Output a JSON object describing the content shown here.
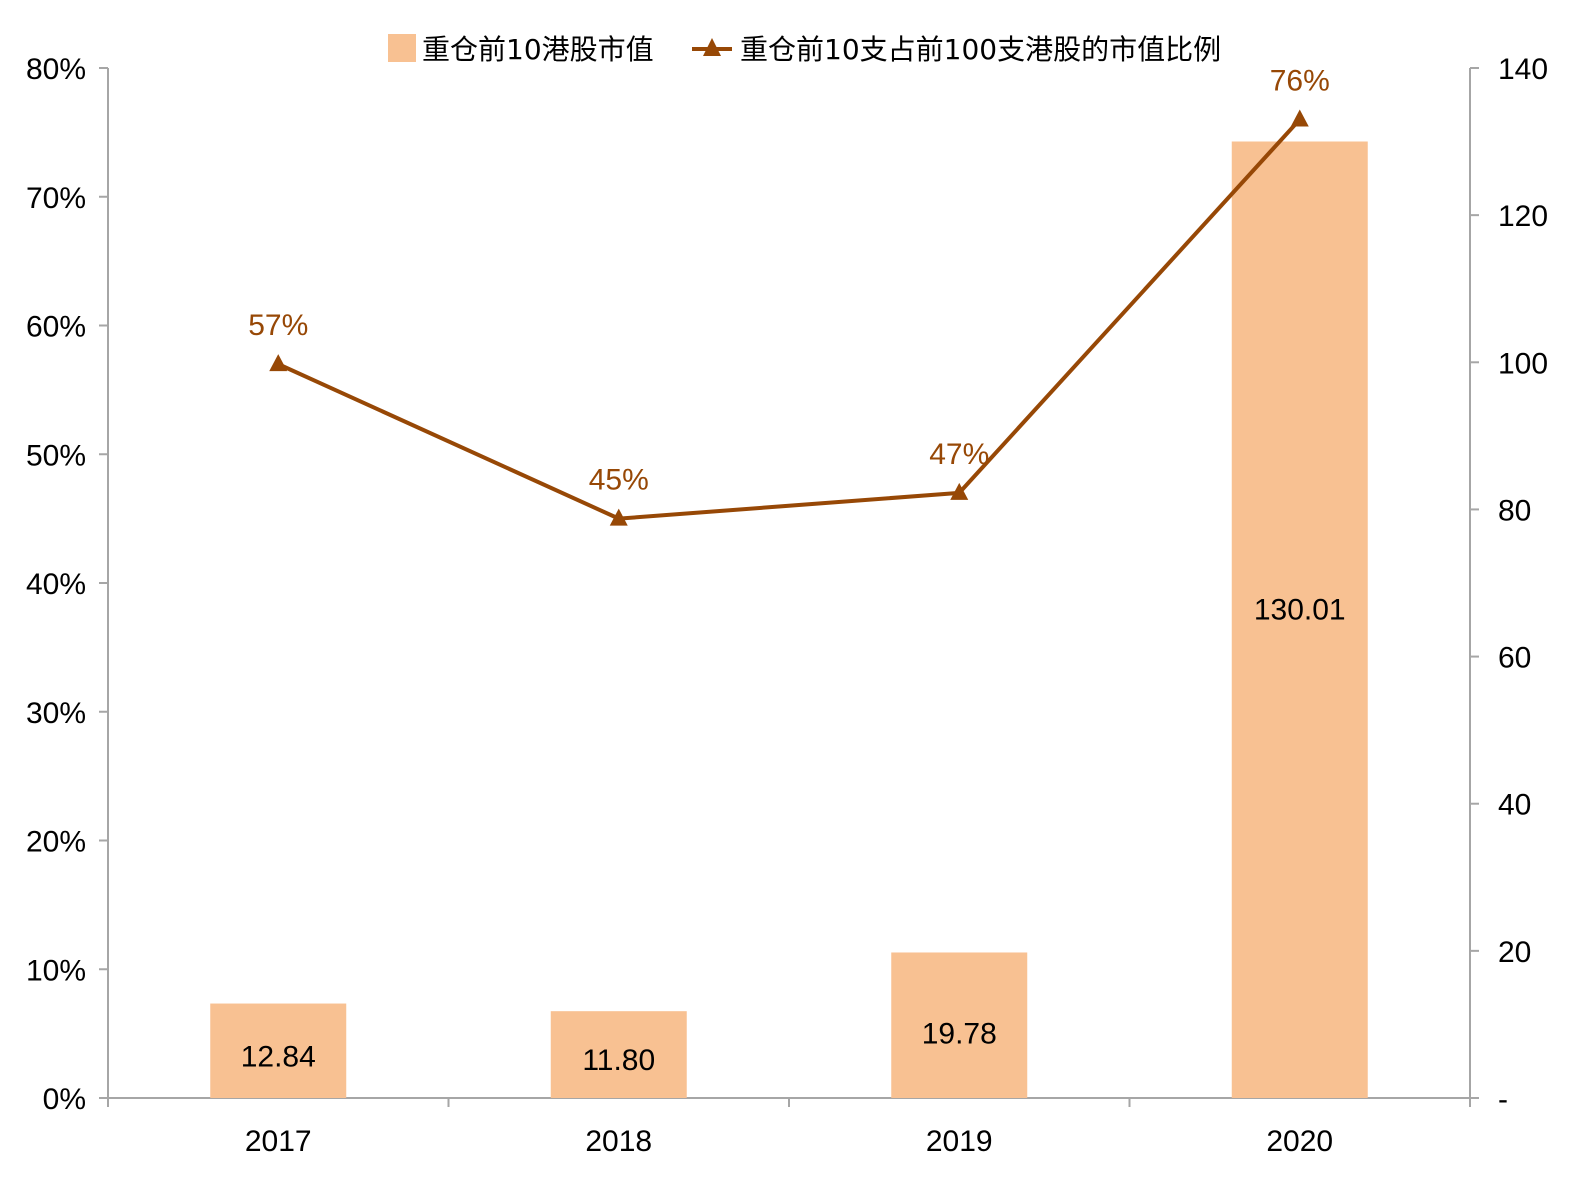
{
  "chart_data": {
    "type": "bar",
    "categories": [
      "2017",
      "2018",
      "2019",
      "2020"
    ],
    "series": [
      {
        "name": "重仓前10港股市值",
        "type": "bar",
        "axis": "right",
        "values": [
          12.84,
          11.8,
          19.78,
          130.01
        ],
        "labels": [
          "12.84",
          "11.80",
          "19.78",
          "130.01"
        ],
        "color": "#F8C192"
      },
      {
        "name": "重仓前10支占前100支港股的市值比例",
        "type": "line",
        "marker": "triangle",
        "axis": "left",
        "values": [
          0.57,
          0.45,
          0.47,
          0.76
        ],
        "labels": [
          "57%",
          "45%",
          "47%",
          "76%"
        ],
        "color": "#974806"
      }
    ],
    "y_left": {
      "range": [
        0,
        0.8
      ],
      "ticks": [
        0,
        0.1,
        0.2,
        0.3,
        0.4,
        0.5,
        0.6,
        0.7,
        0.8
      ],
      "tick_labels": [
        "0%",
        "10%",
        "20%",
        "30%",
        "40%",
        "50%",
        "60%",
        "70%",
        "80%"
      ]
    },
    "y_right": {
      "range": [
        0,
        140
      ],
      "ticks": [
        0,
        20,
        40,
        60,
        80,
        100,
        120,
        140
      ],
      "tick_labels": [
        "-",
        "20",
        "40",
        "60",
        "80",
        "100",
        "120",
        "140"
      ]
    },
    "axis_color": "#A6A6A6",
    "grid": false,
    "legend_position": "top"
  }
}
